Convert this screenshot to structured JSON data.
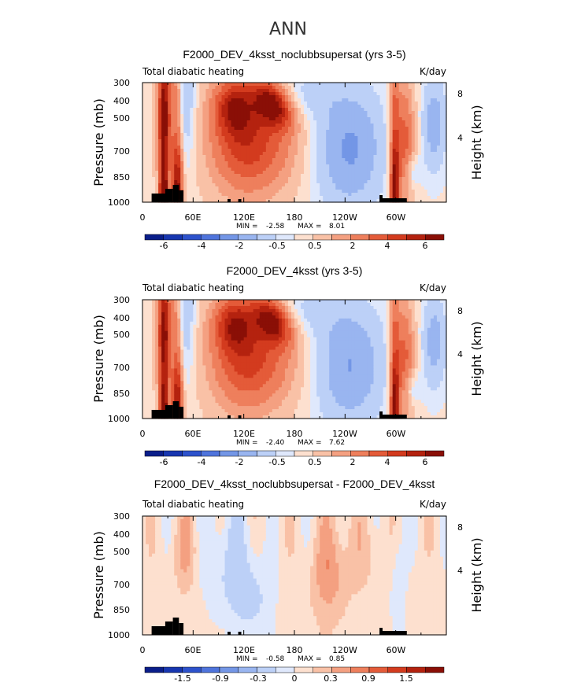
{
  "figure_title": "ANN",
  "colors": {
    "warm": [
      "#fde0cf",
      "#f9c1a6",
      "#f4a081",
      "#ee7f5c",
      "#e45b39",
      "#d33b1e",
      "#b4220f",
      "#8a0f06"
    ],
    "cool": [
      "#dfe8fc",
      "#bcd0f7",
      "#99b5f0",
      "#7396e6",
      "#4f74dc",
      "#2d52cc",
      "#1736b0",
      "#0a1e8a"
    ],
    "terrain": "#000000"
  },
  "chart_data": [
    {
      "type": "heatmap",
      "title": "F2000_DEV_4ksst_noclubbsupersat (yrs 3-5)",
      "left_label": "Total diabatic heating",
      "right_label": "K/day",
      "ylabel": "Pressure (mb)",
      "y2label": "Height (km)",
      "y_ticks": [
        "300",
        "400",
        "500",
        "700",
        "850",
        "1000"
      ],
      "y2_ticks": [
        "8",
        "4"
      ],
      "x_ticks": [
        "0",
        "60E",
        "120E",
        "180",
        "120W",
        "60W"
      ],
      "min_label": "MIN =",
      "min_value": "-2.58",
      "max_label": "MAX =",
      "max_value": "8.01",
      "colorbar_labels": [
        "-6",
        "-4",
        "-2",
        "-0.5",
        "0.5",
        "2",
        "4",
        "6"
      ],
      "scale": 1.0
    },
    {
      "type": "heatmap",
      "title": "F2000_DEV_4ksst (yrs 3-5)",
      "left_label": "Total diabatic heating",
      "right_label": "K/day",
      "ylabel": "Pressure (mb)",
      "y2label": "Height (km)",
      "y_ticks": [
        "300",
        "400",
        "500",
        "700",
        "850",
        "1000"
      ],
      "y2_ticks": [
        "8",
        "4"
      ],
      "x_ticks": [
        "0",
        "60E",
        "120E",
        "180",
        "120W",
        "60W"
      ],
      "min_label": "MIN =",
      "min_value": "-2.40",
      "max_label": "MAX =",
      "max_value": "7.62",
      "colorbar_labels": [
        "-6",
        "-4",
        "-2",
        "-0.5",
        "0.5",
        "2",
        "4",
        "6"
      ],
      "scale": 0.95
    },
    {
      "type": "heatmap",
      "title": "F2000_DEV_4ksst_noclubbsupersat - F2000_DEV_4ksst",
      "left_label": "Total diabatic heating",
      "right_label": "K/day",
      "ylabel": "Pressure (mb)",
      "y2label": "Height (km)",
      "y_ticks": [
        "300",
        "400",
        "500",
        "700",
        "850",
        "1000"
      ],
      "y2_ticks": [
        "8",
        "4"
      ],
      "x_ticks": [
        "0",
        "60E",
        "120E",
        "180",
        "120W",
        "60W"
      ],
      "min_label": "MIN =",
      "min_value": "-0.58",
      "max_label": "MAX =",
      "max_value": "0.85",
      "colorbar_labels": [
        "-1.5",
        "-0.9",
        "-0.3",
        "0",
        "0.3",
        "0.9",
        "1.5"
      ],
      "scale": 0.2
    }
  ]
}
